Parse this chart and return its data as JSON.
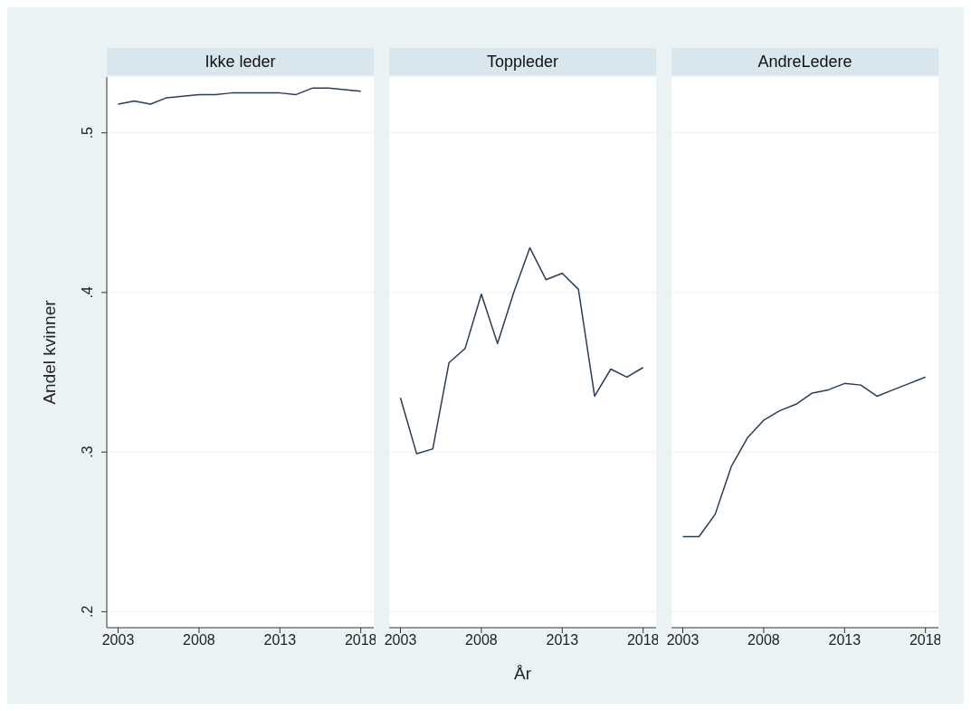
{
  "chart_data": [
    {
      "type": "line",
      "title": "Ikke leder",
      "ylabel": "Andel kvinner",
      "x": [
        2003,
        2004,
        2005,
        2006,
        2007,
        2008,
        2009,
        2010,
        2011,
        2012,
        2013,
        2014,
        2015,
        2016,
        2017,
        2018
      ],
      "series": [
        {
          "color": "#2b3d52",
          "values": [
            0.518,
            0.52,
            0.518,
            0.522,
            0.523,
            0.524,
            0.524,
            0.525,
            0.525,
            0.525,
            0.525,
            0.524,
            0.528,
            0.528,
            0.527,
            0.526
          ]
        }
      ],
      "xlim": [
        2002.3,
        2018.8
      ],
      "xticks": [
        2003,
        2008,
        2013,
        2018
      ],
      "ylim": [
        0.19,
        0.535
      ],
      "yticks": [
        {
          "value": 0.2,
          "label": ".2"
        },
        {
          "value": 0.3,
          "label": ".3"
        },
        {
          "value": 0.4,
          "label": ".4"
        },
        {
          "value": 0.5,
          "label": ".5"
        }
      ],
      "grid": "y",
      "legend": false,
      "marker": "none",
      "line_style": "solid"
    },
    {
      "type": "line",
      "title": "Toppleder",
      "xlabel": "År",
      "x": [
        2003,
        2004,
        2005,
        2006,
        2007,
        2008,
        2009,
        2010,
        2011,
        2012,
        2013,
        2014,
        2015,
        2016,
        2017,
        2018
      ],
      "series": [
        {
          "color": "#2b3d52",
          "values": [
            0.334,
            0.299,
            0.302,
            0.356,
            0.365,
            0.399,
            0.368,
            0.4,
            0.428,
            0.408,
            0.412,
            0.402,
            0.335,
            0.352,
            0.347,
            0.353
          ]
        }
      ],
      "xlim": [
        2002.3,
        2018.8
      ],
      "xticks": [
        2003,
        2008,
        2013,
        2018
      ],
      "ylim": [
        0.19,
        0.535
      ],
      "yticks": [
        0.2,
        0.3,
        0.4,
        0.5
      ],
      "grid": "y",
      "legend": false,
      "marker": "none",
      "line_style": "solid",
      "tick_labels": "x"
    },
    {
      "type": "line",
      "title": "AndreLedere",
      "x": [
        2003,
        2004,
        2005,
        2006,
        2007,
        2008,
        2009,
        2010,
        2011,
        2012,
        2013,
        2014,
        2015,
        2016,
        2017,
        2018
      ],
      "series": [
        {
          "color": "#2b3d52",
          "values": [
            0.247,
            0.247,
            0.261,
            0.291,
            0.309,
            0.32,
            0.326,
            0.33,
            0.337,
            0.339,
            0.343,
            0.342,
            0.335,
            0.339,
            0.343,
            0.347
          ]
        }
      ],
      "xlim": [
        2002.3,
        2018.8
      ],
      "xticks": [
        2003,
        2008,
        2013,
        2018
      ],
      "ylim": [
        0.19,
        0.535
      ],
      "yticks": [
        0.2,
        0.3,
        0.4,
        0.5
      ],
      "grid": "y",
      "legend": false,
      "marker": "none",
      "line_style": "solid",
      "tick_labels": "x"
    }
  ]
}
